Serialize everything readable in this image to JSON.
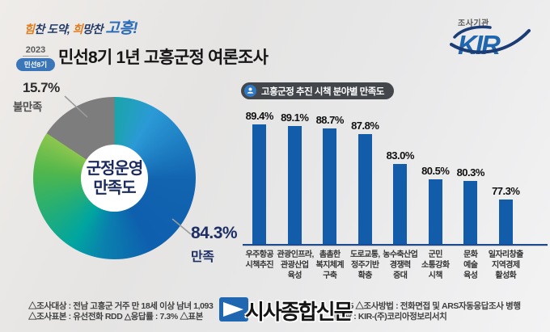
{
  "header": {
    "slogan": {
      "accent1": "힘",
      "rest1": "찬 도약, ",
      "accent2": "희",
      "rest2": "망찬 ",
      "highlight": "고흥!"
    },
    "year_badge": {
      "year": "2023",
      "term": "민선8기"
    },
    "title": "민선8기 1년 고흥군정 여론조사",
    "agency": {
      "label": "조사기관",
      "logo_text": "KIR"
    }
  },
  "donut": {
    "center_line1": "군정운영",
    "center_line2": "만족도",
    "satisfied_value": "84.3%",
    "satisfied_label": "만족",
    "dissatisfied_value": "15.7%",
    "dissatisfied_label": "불만족",
    "colors": {
      "dissatisfied": "#7d7d7d",
      "gradient": [
        "#1ba4aa",
        "#2b9ad6",
        "#1264b0",
        "#0e5fae",
        "#0a80ae",
        "#00a5a0",
        "#2cb06d",
        "#52b74c",
        "#8dc64e"
      ]
    }
  },
  "bar_section": {
    "title": "고흥군정 추진 시책 분야별 만족도"
  },
  "chart_data": [
    {
      "type": "pie",
      "title": "군정운영 만족도",
      "labels": [
        "만족",
        "불만족"
      ],
      "values": [
        84.3,
        15.7
      ],
      "unit": "%",
      "colors": [
        "blue-to-green-gradient",
        "#7d7d7d"
      ],
      "legend_position": "callout-labels"
    },
    {
      "type": "bar",
      "title": "고흥군정 추진 시책 분야별 만족도",
      "unit": "%",
      "categories": [
        "우주항공\n시책추진",
        "관광인프라,\n관광산업\n육성",
        "촘촘한\n복지체계\n구축",
        "도로교통,\n정주기반\n확충",
        "농수축산업\n경쟁력\n증대",
        "군민\n소통강화\n시책",
        "문화\n예술\n육성",
        "일자리창출\n지역경제\n활성화"
      ],
      "values": [
        89.4,
        89.1,
        88.7,
        87.8,
        83.0,
        80.5,
        80.3,
        77.3
      ],
      "value_labels": [
        "89.4%",
        "89.1%",
        "88.7%",
        "87.8%",
        "83.0%",
        "80.5%",
        "80.3%",
        "77.3%"
      ],
      "ylim": [
        70,
        92
      ],
      "bar_color": "#125ca9",
      "grid": false,
      "legend": "none"
    }
  ],
  "footer": {
    "line1_left": "△조사대상 : 전남 고흥군 거주 만 18세 이상 남녀 1,093",
    "line1_right": ". 15   △조사방법 : 전화면접 및 ARS자동응답조사 병행",
    "line2_left": "△조사표본 : 유선전화 RDD   △응답률 : 7.3%   △표본",
    "line2_right": "사기관 : KIR-(주)코리아정보리서치"
  },
  "watermark": {
    "text": "시사종합신문"
  }
}
